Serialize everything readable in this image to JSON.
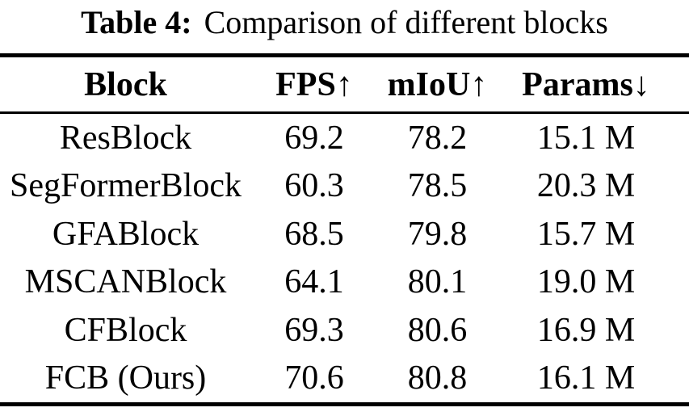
{
  "caption": {
    "label": "Table 4:",
    "text": "Comparison of different blocks"
  },
  "table": {
    "headers": [
      "Block",
      "FPS↑",
      "mIoU↑",
      "Params↓"
    ],
    "rows": [
      [
        "ResBlock",
        "69.2",
        "78.2",
        "15.1 M"
      ],
      [
        "SegFormerBlock",
        "60.3",
        "78.5",
        "20.3 M"
      ],
      [
        "GFABlock",
        "68.5",
        "79.8",
        "15.7 M"
      ],
      [
        "MSCANBlock",
        "64.1",
        "80.1",
        "19.0 M"
      ],
      [
        "CFBlock",
        "69.3",
        "80.6",
        "16.9 M"
      ],
      [
        "FCB (Ours)",
        "70.6",
        "80.8",
        "16.1 M"
      ]
    ]
  },
  "colors": {
    "text": "#000000",
    "background": "#ffffff",
    "rule": "#000000"
  }
}
